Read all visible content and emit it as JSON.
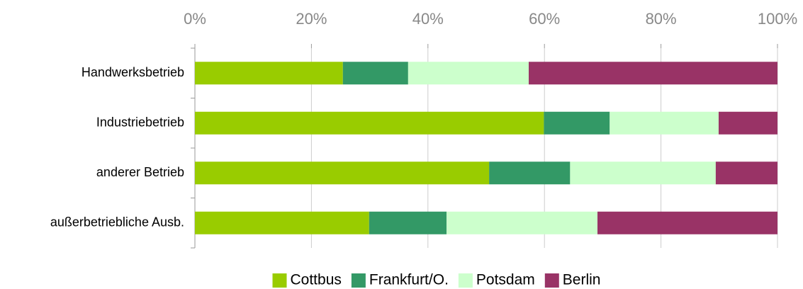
{
  "chart_data": {
    "type": "bar",
    "orientation": "horizontal",
    "stacked": true,
    "categories": [
      "Handwerksbetrieb",
      "Industriebetrieb",
      "anderer Betrieb",
      "außerbetriebliche Ausb."
    ],
    "series": [
      {
        "name": "Cottbus",
        "color": "#99cc00",
        "values": [
          25.4,
          59.9,
          50.5,
          29.9
        ]
      },
      {
        "name": "Frankfurt/O.",
        "color": "#339966",
        "values": [
          11.2,
          11.3,
          13.9,
          13.3
        ]
      },
      {
        "name": "Potsdam",
        "color": "#ccffcc",
        "values": [
          20.7,
          18.7,
          25.0,
          25.9
        ]
      },
      {
        "name": "Berlin",
        "color": "#993366",
        "values": [
          42.7,
          10.1,
          10.6,
          30.9
        ]
      }
    ],
    "xlim": [
      0,
      100
    ],
    "xticks": [
      {
        "value": 0,
        "label": "0%"
      },
      {
        "value": 20,
        "label": "20%"
      },
      {
        "value": 40,
        "label": "40%"
      },
      {
        "value": 60,
        "label": "60%"
      },
      {
        "value": 80,
        "label": "80%"
      },
      {
        "value": 100,
        "label": "100%"
      }
    ],
    "grid": true,
    "legend": "bottom"
  }
}
